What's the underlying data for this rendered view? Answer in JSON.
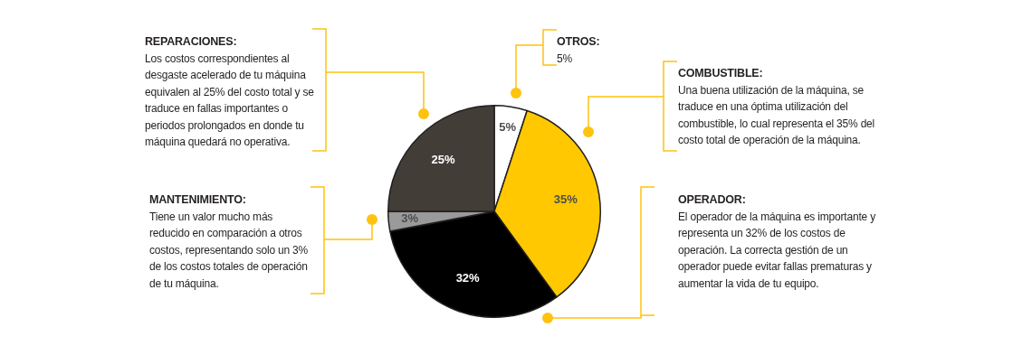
{
  "chart_data": {
    "type": "pie",
    "categories": [
      null,
      null,
      null,
      null,
      null
    ],
    "values": [
      5,
      35,
      32,
      3,
      25
    ],
    "colors": [
      "#ffffff",
      "#ffc800",
      "#000000",
      "#9a9a9a",
      "#433d37"
    ],
    "value_labels": [
      "5%",
      "35%",
      "32%",
      "3%",
      "25%"
    ],
    "annotations": [
      "OTROS:",
      "5%",
      "COMBUSTIBLE:",
      "Una buena utilización de la máquina, se traduce en una óptima utilización del combustible, lo cual representa el 35% del costo total de operación de la máquina.",
      "OPERADOR:",
      "El operador de la máquina es importante y representa un 32% de los costos de operación. La correcta gestión de un operador puede evitar fallas prematuras y aumentar la vida de tu equipo.",
      "MANTENIMIENTO:",
      "Tiene un valor mucho más reducido en comparación a otros costos, representando solo un 3% de los costos totales de operación de tu máquina.",
      "REPARACIONES:",
      "Los costos correspondientes al desgaste acelerado de tu máquina equivalen al 25% del costo total y se traduce en fallas importantes o periodos prolongados en donde tu máquina quedará no operativa."
    ],
    "legend": false
  }
}
